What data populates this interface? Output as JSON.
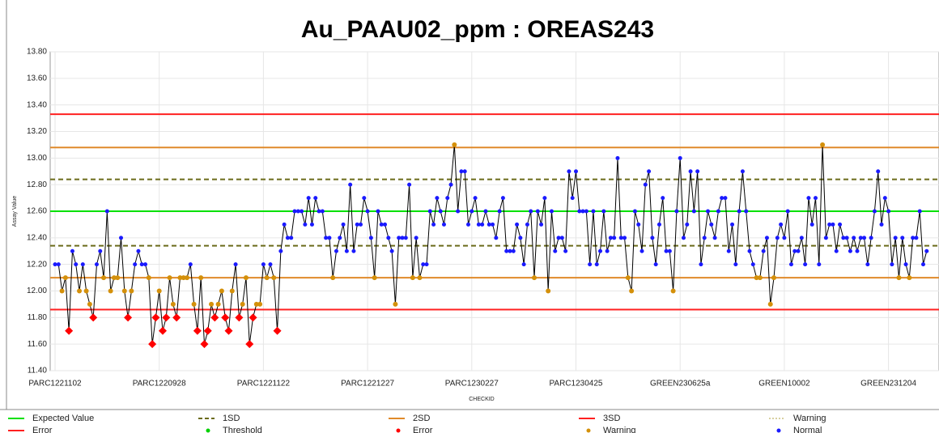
{
  "chart_data": {
    "type": "line",
    "title": "Au_PAAU02_ppm : OREAS243",
    "y_label": "Assay Value",
    "x_label": "CHECKID",
    "ylim": [
      11.4,
      13.8
    ],
    "yticks": [
      {
        "value": 11.4,
        "label": "11.40"
      },
      {
        "value": 11.6,
        "label": "11.60"
      },
      {
        "value": 11.8,
        "label": "11.80"
      },
      {
        "value": 12.0,
        "label": "12.00"
      },
      {
        "value": 12.2,
        "label": "12.20"
      },
      {
        "value": 12.4,
        "label": "12.40"
      },
      {
        "value": 12.6,
        "label": "12.60"
      },
      {
        "value": 12.8,
        "label": "12.80"
      },
      {
        "value": 13.0,
        "label": "13.00"
      },
      {
        "value": 13.2,
        "label": "13.20"
      },
      {
        "value": 13.4,
        "label": "13.40"
      },
      {
        "value": 13.6,
        "label": "13.60"
      },
      {
        "value": 13.8,
        "label": "13.80"
      }
    ],
    "grid": true,
    "categories": [
      "PARC1221102",
      null,
      null,
      null,
      null,
      null,
      null,
      null,
      null,
      null,
      null,
      null,
      null,
      null,
      null,
      null,
      null,
      null,
      null,
      null,
      null,
      null,
      null,
      null,
      null,
      null,
      null,
      null,
      null,
      null,
      "PARC1220928",
      null,
      null,
      null,
      null,
      null,
      null,
      null,
      null,
      null,
      null,
      null,
      null,
      null,
      null,
      null,
      null,
      null,
      null,
      null,
      null,
      null,
      null,
      null,
      null,
      null,
      null,
      null,
      null,
      null,
      "PARC1221122",
      null,
      null,
      null,
      null,
      null,
      null,
      null,
      null,
      null,
      null,
      null,
      null,
      null,
      null,
      null,
      null,
      null,
      null,
      null,
      null,
      null,
      null,
      null,
      null,
      null,
      null,
      null,
      null,
      null,
      "PARC1221227",
      null,
      null,
      null,
      null,
      null,
      null,
      null,
      null,
      null,
      null,
      null,
      null,
      null,
      null,
      null,
      null,
      null,
      null,
      null,
      null,
      null,
      null,
      null,
      null,
      null,
      null,
      null,
      null,
      null,
      "PARC1230227",
      null,
      null,
      null,
      null,
      null,
      null,
      null,
      null,
      null,
      null,
      null,
      null,
      null,
      null,
      null,
      null,
      null,
      null,
      null,
      null,
      null,
      null,
      null,
      null,
      null,
      null,
      null,
      null,
      null,
      "PARC1230425",
      null,
      null,
      null,
      null,
      null,
      null,
      null,
      null,
      null,
      null,
      null,
      null,
      null,
      null,
      null,
      null,
      null,
      null,
      null,
      null,
      null,
      null,
      null,
      null,
      null,
      null,
      null,
      null,
      null,
      "GREEN230625a",
      null,
      null,
      null,
      null,
      null,
      null,
      null,
      null,
      null,
      null,
      null,
      null,
      null,
      null,
      null,
      null,
      null,
      null,
      null,
      null,
      null,
      null,
      null,
      null,
      null,
      null,
      null,
      null,
      null,
      "GREEN10002",
      null,
      null,
      null,
      null,
      null,
      null,
      null,
      null,
      null,
      null,
      null,
      null,
      null,
      null,
      null,
      null,
      null,
      null,
      null,
      null,
      null,
      null,
      null,
      null,
      null,
      null,
      null,
      null,
      null,
      "GREEN231204",
      null,
      null,
      null,
      null,
      null,
      null,
      null,
      null,
      null,
      null,
      null
    ],
    "series": [
      {
        "name": "Assay Value",
        "color": "#000000",
        "values": [
          12.2,
          12.2,
          12.0,
          12.1,
          11.7,
          12.3,
          12.2,
          12.0,
          12.2,
          12.0,
          11.9,
          11.8,
          12.2,
          12.3,
          12.1,
          12.6,
          12.0,
          12.1,
          12.1,
          12.4,
          12.0,
          11.8,
          12.0,
          12.2,
          12.3,
          12.2,
          12.2,
          12.1,
          11.6,
          11.8,
          12.0,
          11.7,
          11.8,
          12.1,
          11.9,
          11.8,
          12.1,
          12.1,
          12.1,
          12.2,
          11.9,
          11.7,
          12.1,
          11.6,
          11.7,
          11.9,
          11.8,
          11.9,
          12.0,
          11.8,
          11.7,
          12.0,
          12.2,
          11.8,
          11.9,
          12.1,
          11.6,
          11.8,
          11.9,
          11.9,
          12.2,
          12.1,
          12.2,
          12.1,
          11.7,
          12.3,
          12.5,
          12.4,
          12.4,
          12.6,
          12.6,
          12.6,
          12.5,
          12.7,
          12.5,
          12.7,
          12.6,
          12.6,
          12.4,
          12.4,
          12.1,
          12.3,
          12.4,
          12.5,
          12.3,
          12.8,
          12.3,
          12.5,
          12.5,
          12.7,
          12.6,
          12.4,
          12.1,
          12.6,
          12.5,
          12.5,
          12.4,
          12.3,
          11.9,
          12.4,
          12.4,
          12.4,
          12.8,
          12.1,
          12.4,
          12.1,
          12.2,
          12.2,
          12.6,
          12.5,
          12.7,
          12.6,
          12.5,
          12.7,
          12.8,
          13.1,
          12.6,
          12.9,
          12.9,
          12.5,
          12.6,
          12.7,
          12.5,
          12.5,
          12.6,
          12.5,
          12.5,
          12.4,
          12.6,
          12.7,
          12.3,
          12.3,
          12.3,
          12.5,
          12.4,
          12.2,
          12.5,
          12.6,
          12.1,
          12.6,
          12.5,
          12.7,
          12.0,
          12.6,
          12.3,
          12.4,
          12.4,
          12.3,
          12.9,
          12.7,
          12.9,
          12.6,
          12.6,
          12.6,
          12.2,
          12.6,
          12.2,
          12.3,
          12.6,
          12.3,
          12.4,
          12.4,
          13.0,
          12.4,
          12.4,
          12.1,
          12.0,
          12.6,
          12.5,
          12.3,
          12.8,
          12.9,
          12.4,
          12.2,
          12.5,
          12.7,
          12.3,
          12.3,
          12.0,
          12.6,
          13.0,
          12.4,
          12.5,
          12.9,
          12.6,
          12.9,
          12.2,
          12.4,
          12.6,
          12.5,
          12.4,
          12.6,
          12.7,
          12.7,
          12.3,
          12.5,
          12.2,
          12.6,
          12.9,
          12.6,
          12.3,
          12.2,
          12.1,
          12.1,
          12.3,
          12.4,
          11.9,
          12.1,
          12.4,
          12.5,
          12.4,
          12.6,
          12.2,
          12.3,
          12.3,
          12.4,
          12.2,
          12.7,
          12.5,
          12.7,
          12.2,
          13.1,
          12.4,
          12.5,
          12.5,
          12.3,
          12.5,
          12.4,
          12.4,
          12.3,
          12.4,
          12.3,
          12.4,
          12.4,
          12.2,
          12.4,
          12.6,
          12.9,
          12.5,
          12.7,
          12.6,
          12.2,
          12.4,
          12.1,
          12.4,
          12.2,
          12.1,
          12.4,
          12.4,
          12.6,
          12.2,
          12.3
        ]
      }
    ],
    "reference_lines": [
      {
        "name": "Expected Value",
        "color": "#00e000",
        "style": "solid",
        "values": [
          12.6
        ]
      },
      {
        "name": "1SD",
        "color": "#6b6b1a",
        "style": "dashed",
        "values": [
          12.34,
          12.84
        ]
      },
      {
        "name": "2SD",
        "color": "#e08a2a",
        "style": "solid",
        "values": [
          12.1,
          13.08
        ]
      },
      {
        "name": "3SD",
        "color": "#ff2020",
        "style": "solid",
        "values": [
          11.86,
          13.33
        ]
      }
    ],
    "point_colors": {
      "normal": "#1a1aff",
      "warning": "#d4900a",
      "error": "#ff0000"
    },
    "legend": [
      {
        "name": "Expected Value",
        "color": "#00e000",
        "style": "line"
      },
      {
        "name": "1SD",
        "color": "#6b6b1a",
        "style": "dashed"
      },
      {
        "name": "2SD",
        "color": "#e08a2a",
        "style": "line"
      },
      {
        "name": "3SD",
        "color": "#ff2020",
        "style": "line"
      },
      {
        "name": "Warning",
        "color": "#d8d0a0",
        "style": "dotted"
      },
      {
        "name": "Error",
        "color": "#ff2020",
        "style": "line"
      },
      {
        "name": "Threshold",
        "color": "#00d000",
        "style": "dot"
      },
      {
        "name": "Error",
        "color": "#ff0000",
        "style": "dot"
      },
      {
        "name": "Warning",
        "color": "#d4900a",
        "style": "dot"
      },
      {
        "name": "Normal",
        "color": "#1a1aff",
        "style": "dot"
      }
    ]
  }
}
